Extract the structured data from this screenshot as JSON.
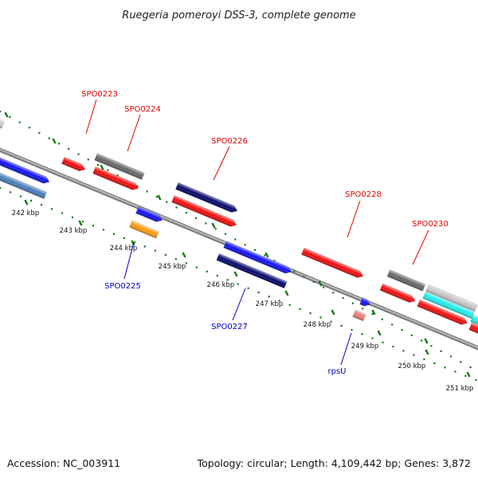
{
  "title": "Ruegeria pomeroyi DSS-3, complete genome",
  "footer": {
    "accession": "Accession: NC_003911",
    "topology": "Topology: circular; Length: 4,109,442 bp; Genes: 3,872"
  },
  "ticks": [
    {
      "label": "242 kbp"
    },
    {
      "label": "243 kbp"
    },
    {
      "label": "244 kbp"
    },
    {
      "label": "245 kbp"
    },
    {
      "label": "246 kbp"
    },
    {
      "label": "247 kbp"
    },
    {
      "label": "248 kbp"
    },
    {
      "label": "249 kbp"
    },
    {
      "label": "250 kbp"
    },
    {
      "label": "251 kbp"
    }
  ],
  "gene_labels": [
    {
      "name": "SPO0223",
      "color": "#e00000"
    },
    {
      "name": "SPO0224",
      "color": "#e00000"
    },
    {
      "name": "SPO0226",
      "color": "#e00000"
    },
    {
      "name": "SPO0228",
      "color": "#e00000"
    },
    {
      "name": "SPO0230",
      "color": "#e00000"
    },
    {
      "name": "SPO0225",
      "color": "#0000c0"
    },
    {
      "name": "SPO0227",
      "color": "#0000c0"
    },
    {
      "name": "rpsU",
      "color": "#0000c0"
    }
  ],
  "colors": {
    "backbone": "#8c8c8c",
    "tick_green": "#1a7a1a",
    "gene_red": "#ee1111",
    "gene_blue": "#1515ee",
    "gene_navy": "#0a0a6e",
    "gene_gray": "#6a6a6a",
    "gene_lightgray": "#c8c8c8",
    "gene_cyan": "#22eeee",
    "gene_orange": "#ff9a10",
    "gene_pink": "#f07a7a",
    "gene_steel": "#4a7fb8"
  }
}
